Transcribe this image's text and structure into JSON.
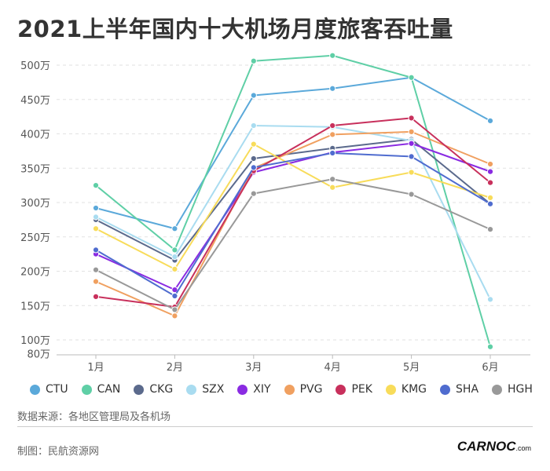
{
  "title": "2021上半年国内十大机场月度旅客吞吐量",
  "source_text": "数据来源：各地区管理局及各机场",
  "credit_text": "制图：民航资源网",
  "brand_text": "CARNOC",
  "brand_suffix": ".com",
  "chart_data": {
    "type": "line",
    "title": "2021上半年国内十大机场月度旅客吞吐量",
    "categories": [
      "1月",
      "2月",
      "3月",
      "4月",
      "5月",
      "6月"
    ],
    "yticks": [
      80,
      100,
      150,
      200,
      250,
      300,
      350,
      400,
      450,
      500
    ],
    "ytick_labels": [
      "80万",
      "100万",
      "150万",
      "200万",
      "250万",
      "300万",
      "350万",
      "400万",
      "450万",
      "500万"
    ],
    "ylim": [
      80,
      515
    ],
    "grid": true,
    "legend_position": "bottom",
    "series": [
      {
        "name": "CTU",
        "color": "#5ba9da",
        "values": [
          292,
          262,
          456,
          466,
          482,
          419
        ]
      },
      {
        "name": "CAN",
        "color": "#5fcfa6",
        "values": [
          325,
          231,
          506,
          514,
          482,
          90
        ]
      },
      {
        "name": "CKG",
        "color": "#5b6a8c",
        "values": [
          275,
          216,
          364,
          379,
          392,
          298
        ]
      },
      {
        "name": "SZX",
        "color": "#a9dcf0",
        "values": [
          279,
          221,
          412,
          410,
          390,
          159
        ]
      },
      {
        "name": "XIY",
        "color": "#8a2be2",
        "values": [
          225,
          173,
          344,
          373,
          386,
          345
        ]
      },
      {
        "name": "PVG",
        "color": "#f0a060",
        "values": [
          185,
          135,
          350,
          399,
          403,
          356
        ]
      },
      {
        "name": "PEK",
        "color": "#c8305c",
        "values": [
          163,
          148,
          346,
          412,
          423,
          329
        ]
      },
      {
        "name": "KMG",
        "color": "#f8dc5a",
        "values": [
          262,
          203,
          385,
          322,
          344,
          307
        ]
      },
      {
        "name": "SHA",
        "color": "#4f6ccf",
        "values": [
          231,
          164,
          351,
          372,
          367,
          298
        ]
      },
      {
        "name": "HGH",
        "color": "#999999",
        "values": [
          202,
          144,
          313,
          334,
          312,
          261
        ]
      }
    ]
  }
}
